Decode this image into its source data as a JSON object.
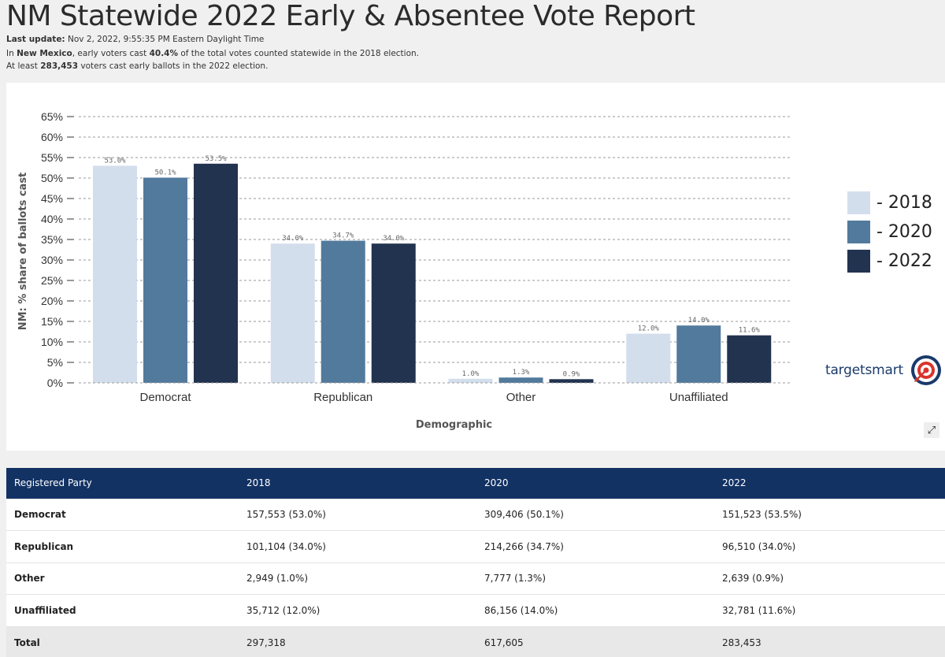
{
  "header": {
    "title": "NM Statewide 2022 Early & Absentee Vote Report",
    "last_update_label": "Last update:",
    "last_update_value": "Nov 2, 2022, 9:55:35 PM Eastern Daylight Time",
    "line2_pre": "In ",
    "line2_state": "New Mexico",
    "line2_mid": ", early voters cast ",
    "line2_pct": "40.4%",
    "line2_post": " of the total votes counted statewide in the 2018 election.",
    "line3_pre": "At least ",
    "line3_count": "283,453",
    "line3_post": " voters cast early ballots in the 2022 election."
  },
  "colors": {
    "s2018": "#d3deed",
    "s2020": "#527a9c",
    "s2022": "#223350",
    "header_bg": "#123264"
  },
  "chart_data": {
    "type": "bar",
    "title": "",
    "xlabel": "Demographic",
    "ylabel": "NM: % share of ballots cast",
    "ylim": [
      0,
      65
    ],
    "yticks": [
      "0%",
      "5%",
      "10%",
      "15%",
      "20%",
      "25%",
      "30%",
      "35%",
      "40%",
      "45%",
      "50%",
      "55%",
      "60%",
      "65%"
    ],
    "categories": [
      "Democrat",
      "Republican",
      "Other",
      "Unaffiliated"
    ],
    "series": [
      {
        "name": "2018",
        "values": [
          53.0,
          34.0,
          1.0,
          12.0
        ],
        "labels": [
          "53.0%",
          "34.0%",
          "1.0%",
          "12.0%"
        ]
      },
      {
        "name": "2020",
        "values": [
          50.1,
          34.7,
          1.3,
          14.0
        ],
        "labels": [
          "50.1%",
          "34.7%",
          "1.3%",
          "14.0%"
        ]
      },
      {
        "name": "2022",
        "values": [
          53.5,
          34.0,
          0.9,
          11.6
        ],
        "labels": [
          "53.5%",
          "34.0%",
          "0.9%",
          "11.6%"
        ]
      }
    ],
    "legend": [
      "- 2018",
      "- 2020",
      "- 2022"
    ],
    "legend_position": "right"
  },
  "logo": {
    "text": "targetsmart",
    "icon": "target-logo-icon"
  },
  "expand_icon": "expand-icon",
  "table": {
    "headers": [
      "Registered Party",
      "2018",
      "2020",
      "2022"
    ],
    "rows": [
      [
        "Democrat",
        "157,553 (53.0%)",
        "309,406 (50.1%)",
        "151,523 (53.5%)"
      ],
      [
        "Republican",
        "101,104 (34.0%)",
        "214,266 (34.7%)",
        "96,510 (34.0%)"
      ],
      [
        "Other",
        "2,949 (1.0%)",
        "7,777 (1.3%)",
        "2,639 (0.9%)"
      ],
      [
        "Unaffiliated",
        "35,712 (12.0%)",
        "86,156 (14.0%)",
        "32,781 (11.6%)"
      ],
      [
        "Total",
        "297,318",
        "617,605",
        "283,453"
      ]
    ]
  }
}
